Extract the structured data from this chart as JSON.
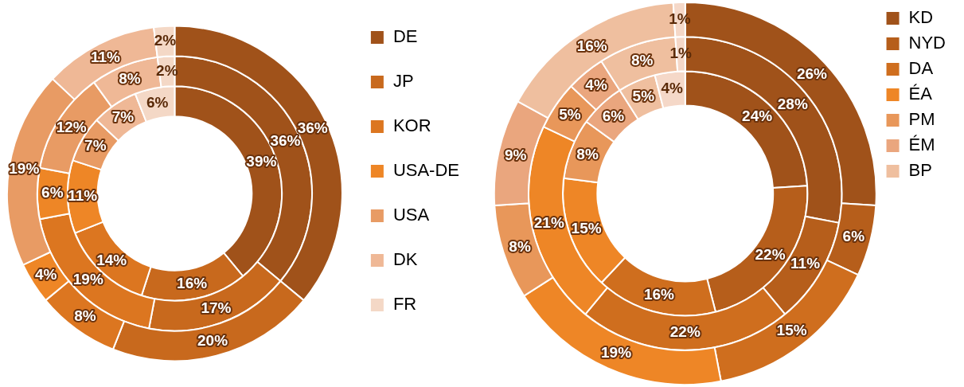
{
  "chart_data": [
    {
      "type": "donut",
      "categories": [
        "DE",
        "JP",
        "KOR",
        "USA-DE",
        "USA",
        "DK",
        "FR"
      ],
      "colors": [
        "#a0521a",
        "#c8691d",
        "#dc7620",
        "#ee8626",
        "#e89b64",
        "#efb896",
        "#f4d8c6"
      ],
      "legend": "right",
      "series": [
        {
          "values": [
            36,
            20,
            8,
            4,
            19,
            11,
            2
          ],
          "value_labels": [
            "36%",
            "20%",
            "8%",
            "4%",
            "19%",
            "11%",
            "2%"
          ]
        },
        {
          "values": [
            36,
            17,
            19,
            6,
            12,
            8,
            2
          ],
          "value_labels": [
            "36%",
            "17%",
            "19%",
            "6%",
            "12%",
            "8%",
            "2%"
          ]
        },
        {
          "values": [
            39,
            16,
            14,
            11,
            7,
            7,
            6
          ],
          "value_labels": [
            "39%",
            "16%",
            "14%",
            "11%",
            "7%",
            "7%",
            "6%"
          ]
        }
      ]
    },
    {
      "type": "donut",
      "categories": [
        "KD",
        "NYD",
        "DA",
        "ÉA",
        "PM",
        "ÉM",
        "BP",
        null
      ],
      "colors": [
        "#a0521a",
        "#b65e1b",
        "#cf6e1e",
        "#ee8626",
        "#e8975a",
        "#eaa67e",
        "#efbf9f",
        "#f5d8c8"
      ],
      "legend": "right",
      "series": [
        {
          "values": [
            26,
            6,
            15,
            19,
            8,
            9,
            16,
            1
          ],
          "value_labels": [
            "26%",
            "6%",
            "15%",
            "19%",
            "8%",
            "9%",
            "16%",
            "1%"
          ]
        },
        {
          "values": [
            28,
            11,
            22,
            21,
            5,
            4,
            8,
            1
          ],
          "value_labels": [
            "28%",
            "11%",
            "22%",
            "21%",
            "5%",
            "4%",
            "8%",
            "1%"
          ]
        },
        {
          "values": [
            24,
            22,
            16,
            15,
            8,
            6,
            5,
            4
          ],
          "value_labels": [
            "24%",
            "22%",
            "16%",
            "15%",
            "8%",
            "6%",
            "5%",
            "4%"
          ]
        }
      ]
    }
  ]
}
